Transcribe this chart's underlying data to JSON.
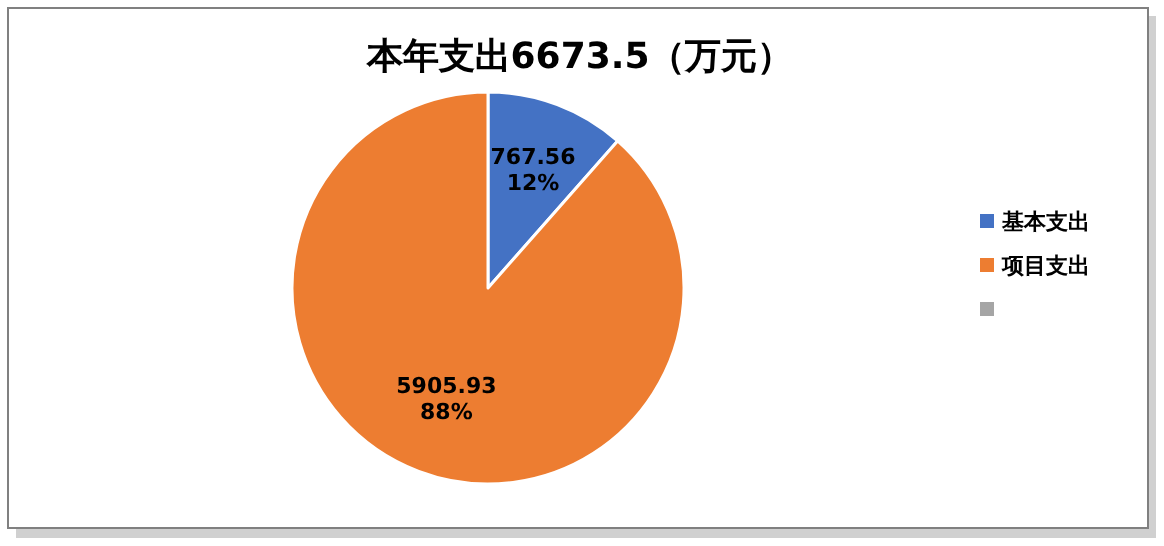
{
  "chart_data": {
    "type": "pie",
    "title": "本年支出6673.5（万元）",
    "categories": [
      "基本支出",
      "项目支出",
      null
    ],
    "values": [
      767.56,
      5905.93,
      0
    ],
    "colors": [
      "#4472c4",
      "#ed7d31",
      "#a5a5a5"
    ],
    "value_labels": [
      "767.56\n12%",
      "5905.93\n88%",
      null
    ],
    "legend": "right"
  }
}
